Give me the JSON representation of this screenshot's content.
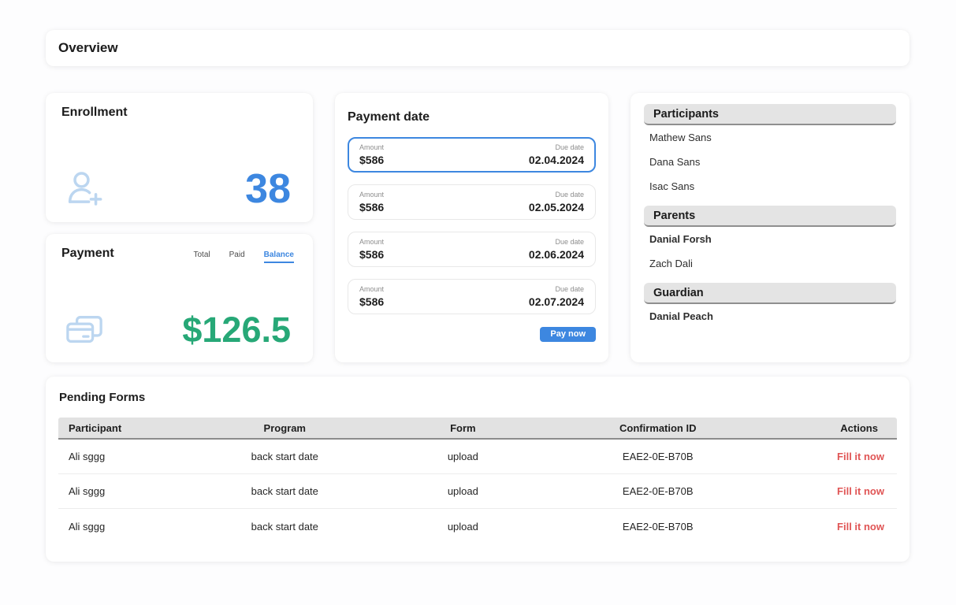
{
  "page": {
    "title": "Overview"
  },
  "enrollment": {
    "title": "Enrollment",
    "value": "38"
  },
  "payment": {
    "title": "Payment",
    "tabs": [
      {
        "label": "Total",
        "active": false
      },
      {
        "label": "Paid",
        "active": false
      },
      {
        "label": "Balance",
        "active": true
      }
    ],
    "value": "$126.5"
  },
  "payment_date": {
    "title": "Payment date",
    "amount_label": "Amount",
    "due_date_label": "Due date",
    "installments": [
      {
        "amount": "$586",
        "due_date": "02.04.2024",
        "selected": true
      },
      {
        "amount": "$586",
        "due_date": "02.05.2024",
        "selected": false
      },
      {
        "amount": "$586",
        "due_date": "02.06.2024",
        "selected": false
      },
      {
        "amount": "$586",
        "due_date": "02.07.2024",
        "selected": false
      }
    ],
    "pay_button_label": "Pay now"
  },
  "people": {
    "sections": [
      {
        "title": "Participants",
        "members": [
          {
            "name": "Mathew Sans",
            "bold": false
          },
          {
            "name": "Dana Sans",
            "bold": false
          },
          {
            "name": "Isac Sans",
            "bold": false
          }
        ]
      },
      {
        "title": "Parents",
        "members": [
          {
            "name": "Danial Forsh",
            "bold": true
          },
          {
            "name": "Zach Dali",
            "bold": false
          }
        ]
      },
      {
        "title": "Guardian",
        "members": [
          {
            "name": "Danial Peach",
            "bold": true
          }
        ]
      }
    ]
  },
  "pending_forms": {
    "title": "Pending Forms",
    "columns": [
      "Participant",
      "Program",
      "Form",
      "Confirmation ID",
      "Actions"
    ],
    "rows": [
      {
        "participant": "Ali sggg",
        "program": "back start date",
        "form": "upload",
        "confirmation_id": "EAE2-0E-B70B",
        "action": "Fill it now"
      },
      {
        "participant": "Ali sggg",
        "program": "back start date",
        "form": "upload",
        "confirmation_id": "EAE2-0E-B70B",
        "action": "Fill it now"
      },
      {
        "participant": "Ali sggg",
        "program": "back start date",
        "form": "upload",
        "confirmation_id": "EAE2-0E-B70B",
        "action": "Fill it now"
      }
    ]
  },
  "icons": {
    "enrollment": "person-add-icon",
    "payment": "credit-cards-icon"
  },
  "colors": {
    "accent_blue": "#3d87e0",
    "value_green": "#27a877",
    "icon_blue": "#bcd6f0",
    "action_red": "#e05555"
  }
}
